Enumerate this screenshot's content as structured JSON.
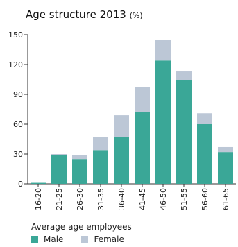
{
  "chart_data": {
    "type": "bar",
    "stacked": true,
    "title": "Age structure 2013",
    "title_unit": "(%)",
    "categories": [
      "16-20",
      "21-25",
      "26-30",
      "31-35",
      "36-40",
      "41-45",
      "46-50",
      "51-55",
      "56-60",
      "61-65"
    ],
    "series": [
      {
        "name": "Male",
        "color": "#3aa797",
        "values": [
          1,
          29,
          25,
          34,
          47,
          72,
          124,
          104,
          60,
          32
        ]
      },
      {
        "name": "Female",
        "color": "#bcc7d6",
        "values": [
          0,
          1,
          4,
          13,
          22,
          25,
          21,
          9,
          11,
          5
        ]
      }
    ],
    "yticks": [
      0,
      30,
      60,
      90,
      120,
      150
    ],
    "ylim": [
      0,
      150
    ],
    "grid": false,
    "legend_title": "Average age employees",
    "legend_position": "bottom-left"
  }
}
